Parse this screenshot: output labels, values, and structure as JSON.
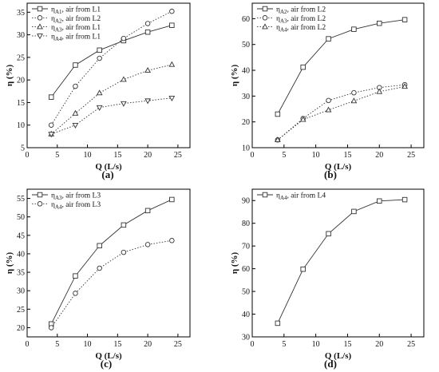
{
  "chart_data": [
    {
      "type": "line",
      "panel_label": "(a)",
      "xlabel": "Q  (L/s)",
      "ylabel": "η  (%)",
      "xlim": [
        0,
        27
      ],
      "ylim": [
        5,
        37
      ],
      "xticks": [
        0,
        5,
        10,
        15,
        20,
        25
      ],
      "yticks": [
        5,
        10,
        15,
        20,
        25,
        30,
        35
      ],
      "grid": false,
      "legend_position": "top-left",
      "x": [
        4,
        8,
        12,
        16,
        20,
        24
      ],
      "series": [
        {
          "name_main": "η",
          "name_sub": "A1",
          "name_rest": ", air from L1",
          "values": [
            16.2,
            23.3,
            26.6,
            28.7,
            30.6,
            32.1
          ],
          "marker": "square",
          "dash": "solid"
        },
        {
          "name_main": "η",
          "name_sub": "A2",
          "name_rest": ", air from L2",
          "values": [
            10.0,
            18.6,
            24.8,
            29.2,
            32.5,
            35.2
          ],
          "marker": "circle",
          "dash": "dotted"
        },
        {
          "name_main": "η",
          "name_sub": "A3",
          "name_rest": ", air from L1",
          "values": [
            8.0,
            12.6,
            17.1,
            20.1,
            22.1,
            23.4
          ],
          "marker": "triangle-up",
          "dash": "dotted"
        },
        {
          "name_main": "η",
          "name_sub": "A4",
          "name_rest": ", air from L1",
          "values": [
            8.0,
            10.0,
            13.9,
            14.8,
            15.4,
            16.0
          ],
          "marker": "triangle-down",
          "dash": "dotted"
        }
      ]
    },
    {
      "type": "line",
      "panel_label": "(b)",
      "xlabel": "Q  (L/s)",
      "ylabel": "η  (%)",
      "xlim": [
        0,
        27
      ],
      "ylim": [
        10,
        66
      ],
      "xticks": [
        0,
        5,
        10,
        15,
        20,
        25
      ],
      "yticks": [
        10,
        20,
        30,
        40,
        50,
        60
      ],
      "grid": false,
      "legend_position": "top-left",
      "x": [
        4,
        8,
        12,
        16,
        20,
        24
      ],
      "series": [
        {
          "name_main": "η",
          "name_sub": "A2",
          "name_rest": ", air from L2",
          "values": [
            23.0,
            41.2,
            52.2,
            55.9,
            58.2,
            59.6
          ],
          "marker": "square",
          "dash": "solid"
        },
        {
          "name_main": "η",
          "name_sub": "A3",
          "name_rest": ", air from L2",
          "values": [
            13.0,
            21.3,
            28.3,
            31.3,
            33.3,
            34.4
          ],
          "marker": "circle",
          "dash": "dotted"
        },
        {
          "name_main": "η",
          "name_sub": "A4",
          "name_rest": ", air from L2",
          "values": [
            13.0,
            20.9,
            24.6,
            28.1,
            31.7,
            33.7
          ],
          "marker": "triangle-up",
          "dash": "dotted"
        }
      ]
    },
    {
      "type": "line",
      "panel_label": "(c)",
      "xlabel": "Q  (L/s)",
      "ylabel": "η  (%)",
      "xlim": [
        0,
        27
      ],
      "ylim": [
        17.5,
        57.5
      ],
      "xticks": [
        0,
        5,
        10,
        15,
        20,
        25
      ],
      "yticks": [
        20,
        25,
        30,
        35,
        40,
        45,
        50,
        55
      ],
      "grid": false,
      "legend_position": "top-left",
      "x": [
        4,
        8,
        12,
        16,
        20,
        24
      ],
      "series": [
        {
          "name_main": "η",
          "name_sub": "A3",
          "name_rest": ", air from L3",
          "values": [
            21.0,
            34.0,
            42.2,
            47.8,
            51.7,
            54.7
          ],
          "marker": "square",
          "dash": "solid"
        },
        {
          "name_main": "η",
          "name_sub": "A4",
          "name_rest": ", air from L3",
          "values": [
            20.0,
            29.3,
            36.1,
            40.4,
            42.5,
            43.6
          ],
          "marker": "circle",
          "dash": "dotted"
        }
      ]
    },
    {
      "type": "line",
      "panel_label": "(d)",
      "xlabel": "Q  (L/s)",
      "ylabel": "η  (%)",
      "xlim": [
        0,
        27
      ],
      "ylim": [
        30,
        95
      ],
      "xticks": [
        0,
        5,
        10,
        15,
        20,
        25
      ],
      "yticks": [
        30,
        40,
        50,
        60,
        70,
        80,
        90
      ],
      "grid": false,
      "legend_position": "top-left",
      "x": [
        4,
        8,
        12,
        16,
        20,
        24
      ],
      "series": [
        {
          "name_main": "η",
          "name_sub": "A4",
          "name_rest": ", air from L4",
          "values": [
            36.0,
            59.8,
            75.4,
            85.2,
            89.8,
            90.4
          ],
          "marker": "square",
          "dash": "solid"
        }
      ]
    }
  ]
}
